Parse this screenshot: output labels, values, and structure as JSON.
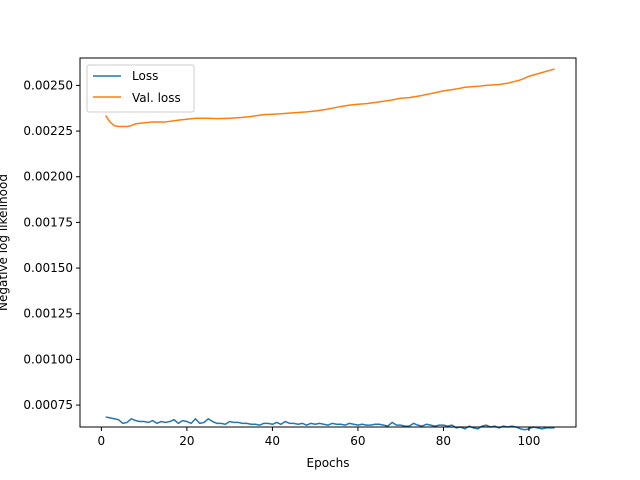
{
  "chart_data": {
    "type": "line",
    "title": "",
    "xlabel": "Epochs",
    "ylabel": "Negative log likelihood",
    "xlim": [
      -5,
      111
    ],
    "ylim": [
      0.00063,
      0.00265
    ],
    "x_ticks": [
      0,
      20,
      40,
      60,
      80,
      100
    ],
    "y_ticks": [
      0.00075,
      0.001,
      0.00125,
      0.0015,
      0.00175,
      0.002,
      0.00225,
      0.0025
    ],
    "x_tick_labels": [
      "0",
      "20",
      "40",
      "60",
      "80",
      "100"
    ],
    "y_tick_labels": [
      "0.00075",
      "0.00100",
      "0.00125",
      "0.00150",
      "0.00175",
      "0.00200",
      "0.00225",
      "0.00250"
    ],
    "grid": false,
    "legend_position": "upper-left",
    "series": [
      {
        "name": "Loss",
        "color": "#1f77b4",
        "x": [
          1,
          2,
          3,
          4,
          5,
          6,
          7,
          8,
          9,
          10,
          11,
          12,
          13,
          14,
          15,
          16,
          17,
          18,
          19,
          20,
          21,
          22,
          23,
          24,
          25,
          26,
          27,
          28,
          29,
          30,
          31,
          32,
          33,
          34,
          35,
          36,
          37,
          38,
          39,
          40,
          41,
          42,
          43,
          44,
          45,
          46,
          47,
          48,
          49,
          50,
          51,
          52,
          53,
          54,
          55,
          56,
          57,
          58,
          59,
          60,
          61,
          62,
          63,
          64,
          65,
          66,
          67,
          68,
          69,
          70,
          71,
          72,
          73,
          74,
          75,
          76,
          77,
          78,
          79,
          80,
          81,
          82,
          83,
          84,
          85,
          86,
          87,
          88,
          89,
          90,
          91,
          92,
          93,
          94,
          95,
          96,
          97,
          98,
          99,
          100,
          101,
          102,
          103,
          104,
          105,
          106
        ],
        "y": [
          0.000685,
          0.00068,
          0.000675,
          0.00067,
          0.00065,
          0.000655,
          0.000675,
          0.000665,
          0.00066,
          0.00066,
          0.000655,
          0.000665,
          0.00065,
          0.00066,
          0.000655,
          0.00066,
          0.00067,
          0.00065,
          0.000665,
          0.00066,
          0.00065,
          0.000675,
          0.00065,
          0.000655,
          0.000675,
          0.00066,
          0.00065,
          0.00065,
          0.000645,
          0.00066,
          0.000655,
          0.000655,
          0.00065,
          0.00065,
          0.000645,
          0.000645,
          0.00064,
          0.00065,
          0.00065,
          0.000645,
          0.000655,
          0.000645,
          0.00066,
          0.00065,
          0.00065,
          0.000645,
          0.00065,
          0.00064,
          0.00065,
          0.000645,
          0.00065,
          0.000645,
          0.00064,
          0.00065,
          0.000645,
          0.000645,
          0.00064,
          0.00065,
          0.000645,
          0.00064,
          0.000645,
          0.00064,
          0.00064,
          0.000645,
          0.000645,
          0.00064,
          0.000635,
          0.000655,
          0.00064,
          0.00064,
          0.000635,
          0.000635,
          0.00065,
          0.00064,
          0.000635,
          0.000645,
          0.00064,
          0.000635,
          0.00064,
          0.00064,
          0.000635,
          0.00064,
          0.000625,
          0.00063,
          0.00062,
          0.000635,
          0.000625,
          0.00062,
          0.000635,
          0.00064,
          0.00063,
          0.000635,
          0.000625,
          0.000635,
          0.00063,
          0.000635,
          0.00063,
          0.00062,
          0.000615,
          0.00062,
          0.00063,
          0.000625,
          0.00062,
          0.000625,
          0.000625,
          0.000625
        ]
      },
      {
        "name": "Val. loss",
        "color": "#ff7f0e",
        "x": [
          1,
          2,
          3,
          4,
          5,
          6,
          7,
          8,
          10,
          12,
          15,
          18,
          20,
          22,
          25,
          27,
          30,
          33,
          35,
          38,
          40,
          42,
          45,
          48,
          50,
          53,
          55,
          58,
          60,
          62,
          65,
          68,
          70,
          72,
          75,
          78,
          80,
          83,
          85,
          88,
          90,
          93,
          95,
          98,
          100,
          103,
          106
        ],
        "y": [
          0.002335,
          0.0023,
          0.00228,
          0.002275,
          0.002275,
          0.002275,
          0.00228,
          0.00229,
          0.002295,
          0.0023,
          0.0023,
          0.00231,
          0.002315,
          0.00232,
          0.00232,
          0.002318,
          0.00232,
          0.002325,
          0.00233,
          0.00234,
          0.002342,
          0.002345,
          0.00235,
          0.002355,
          0.00236,
          0.00237,
          0.00238,
          0.002392,
          0.002397,
          0.0024,
          0.00241,
          0.00242,
          0.00243,
          0.002433,
          0.002445,
          0.00246,
          0.00247,
          0.00248,
          0.00249,
          0.002495,
          0.0025,
          0.002505,
          0.002512,
          0.00253,
          0.00255,
          0.00257,
          0.00259
        ]
      }
    ]
  }
}
